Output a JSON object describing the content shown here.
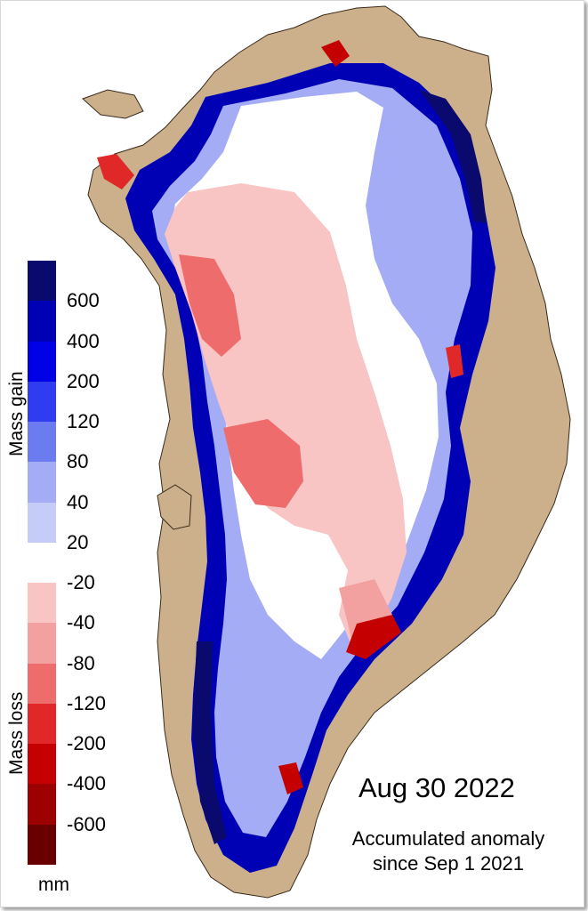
{
  "colorbar": {
    "ticks": [
      "600",
      "400",
      "200",
      "120",
      "80",
      "40",
      "20",
      "-20",
      "-40",
      "-80",
      "-120",
      "-200",
      "-400",
      "-600"
    ],
    "colors": [
      "#0a0a6e",
      "#0000b4",
      "#0000e6",
      "#2f3cf0",
      "#6b7cf0",
      "#a3acf4",
      "#c6ccf8",
      "#ffffff",
      "#f8c4c4",
      "#f3a0a0",
      "#ee6c6c",
      "#e02828",
      "#c40000",
      "#9c0000",
      "#680000"
    ],
    "gain_label": "Mass gain",
    "loss_label": "Mass loss",
    "unit": "mm"
  },
  "date": "Aug 30 2022",
  "caption": {
    "line1": "Accumulated anomaly",
    "line2": "since Sep 1 2021"
  },
  "map": {
    "land_color": "#cbb08b",
    "coast_color": "#3a2a1a"
  }
}
